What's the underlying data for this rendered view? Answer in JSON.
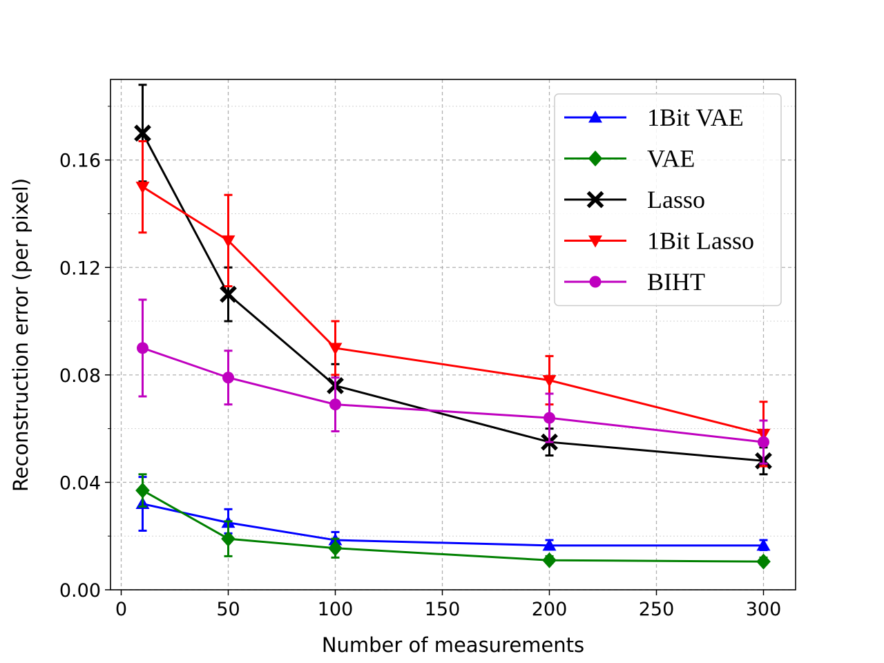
{
  "chart_data": {
    "type": "line",
    "xlabel": "Number of measurements",
    "ylabel": "Reconstruction error (per pixel)",
    "xlim": [
      -5,
      315
    ],
    "ylim": [
      0,
      0.19
    ],
    "x_ticks": [
      0,
      50,
      100,
      150,
      200,
      250,
      300
    ],
    "x_tick_labels": [
      "0",
      "50",
      "100",
      "150",
      "200",
      "250",
      "300"
    ],
    "y_ticks": [
      0,
      0.04,
      0.08,
      0.12,
      0.16
    ],
    "y_tick_labels": [
      "0.00",
      "0.04",
      "0.08",
      "0.12",
      "0.16"
    ],
    "y_minor_ticks": [
      0.02,
      0.06,
      0.1,
      0.14,
      0.18
    ],
    "grid": true,
    "legend_position": "top-right",
    "x": [
      10,
      50,
      100,
      200,
      300
    ],
    "series": [
      {
        "name": "1Bit VAE",
        "color": "#0000ff",
        "marker": "triangle-up",
        "values": [
          0.032,
          0.025,
          0.0185,
          0.0165,
          0.0165
        ],
        "err_low": [
          0.022,
          0.021,
          0.0155,
          0.015,
          0.0148
        ],
        "err_high": [
          0.042,
          0.03,
          0.0215,
          0.0185,
          0.0185
        ]
      },
      {
        "name": "VAE",
        "color": "#008000",
        "marker": "diamond",
        "values": [
          0.037,
          0.019,
          0.0155,
          0.011,
          0.0105
        ],
        "err_low": [
          0.031,
          0.0125,
          0.012,
          0.01,
          0.0095
        ],
        "err_high": [
          0.043,
          0.0255,
          0.019,
          0.0125,
          0.012
        ]
      },
      {
        "name": "Lasso",
        "color": "#000000",
        "marker": "x-filled",
        "values": [
          0.17,
          0.11,
          0.076,
          0.055,
          0.048
        ],
        "err_low": [
          0.152,
          0.1,
          0.068,
          0.05,
          0.043
        ],
        "err_high": [
          0.188,
          0.12,
          0.084,
          0.06,
          0.053
        ]
      },
      {
        "name": "1Bit Lasso",
        "color": "#ff0000",
        "marker": "triangle-down",
        "values": [
          0.15,
          0.13,
          0.09,
          0.078,
          0.058
        ],
        "err_low": [
          0.133,
          0.113,
          0.08,
          0.069,
          0.046
        ],
        "err_high": [
          0.167,
          0.147,
          0.1,
          0.087,
          0.07
        ]
      },
      {
        "name": "BIHT",
        "color": "#bf00bf",
        "marker": "circle",
        "values": [
          0.09,
          0.079,
          0.069,
          0.064,
          0.055
        ],
        "err_low": [
          0.072,
          0.069,
          0.059,
          0.055,
          0.047
        ],
        "err_high": [
          0.108,
          0.089,
          0.079,
          0.073,
          0.063
        ]
      }
    ]
  }
}
